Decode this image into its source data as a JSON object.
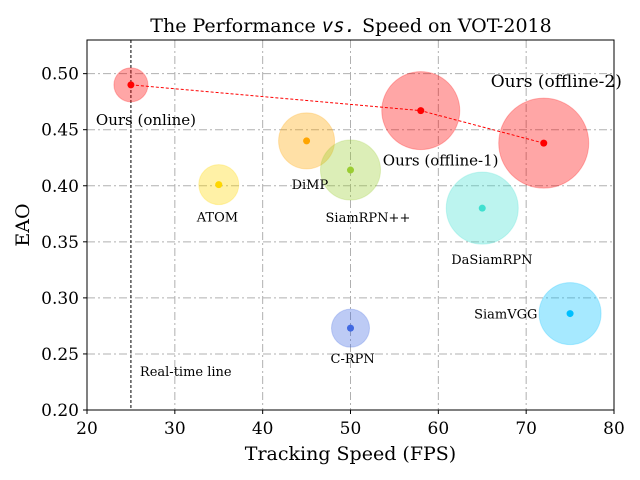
{
  "chart_data": {
    "type": "scatter",
    "title_parts": [
      "The Performance ",
      "vs.",
      " Speed on VOT-2018"
    ],
    "xlabel": "Tracking Speed (FPS)",
    "ylabel": "EAO",
    "xlim": [
      20,
      80
    ],
    "ylim": [
      0.2,
      0.53
    ],
    "xticks": [
      20,
      30,
      40,
      50,
      60,
      70,
      80
    ],
    "yticks": [
      0.2,
      0.25,
      0.3,
      0.35,
      0.4,
      0.45,
      0.5
    ],
    "ytick_labels": [
      "0.20",
      "0.25",
      "0.30",
      "0.35",
      "0.40",
      "0.45",
      "0.50"
    ],
    "grid": true,
    "vline": {
      "x": 25,
      "label": "Real-time line"
    },
    "points": [
      {
        "label": "Ours (online)",
        "x": 25,
        "y": 0.49,
        "size": 17,
        "color": "#ff0000"
      },
      {
        "label": "Ours (offline-1)",
        "x": 58,
        "y": 0.467,
        "size": 39,
        "color": "#ff0000"
      },
      {
        "label": "Ours (offline-2)",
        "x": 72,
        "y": 0.438,
        "size": 45,
        "color": "#ff0000"
      },
      {
        "label": "DiMP",
        "x": 45,
        "y": 0.44,
        "size": 28,
        "color": "#ffa500"
      },
      {
        "label": "SiamRPN++",
        "x": 50,
        "y": 0.414,
        "size": 30,
        "color": "#9acd32"
      },
      {
        "label": "ATOM",
        "x": 35,
        "y": 0.401,
        "size": 20,
        "color": "#ffd700"
      },
      {
        "label": "DaSiamRPN",
        "x": 65,
        "y": 0.38,
        "size": 36,
        "color": "#40e0d0"
      },
      {
        "label": "SiamVGG",
        "x": 75,
        "y": 0.286,
        "size": 31,
        "color": "#00bfff"
      },
      {
        "label": "C-RPN",
        "x": 50,
        "y": 0.273,
        "size": 19,
        "color": "#4169e1"
      }
    ],
    "trend_line": [
      "Ours (online)",
      "Ours (offline-1)",
      "Ours (offline-2)"
    ],
    "trend_color": "#ff0000"
  }
}
